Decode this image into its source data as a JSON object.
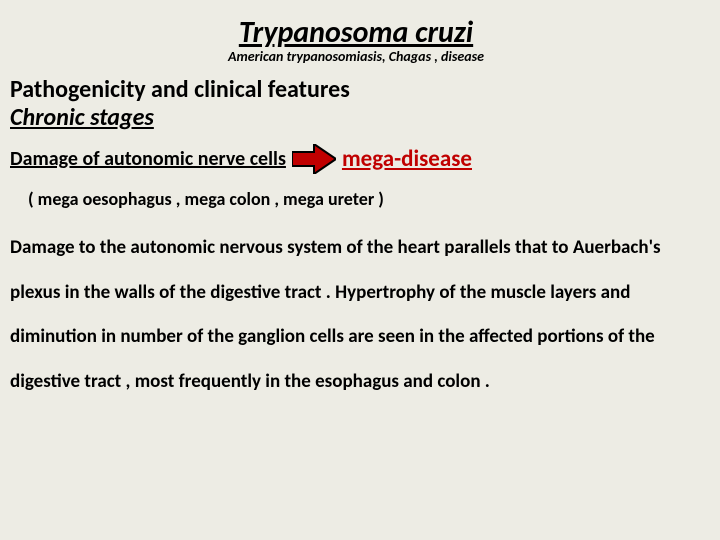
{
  "title": {
    "text": "Trypanosoma cruzi",
    "fontsize": 30,
    "color": "#000000"
  },
  "subtitle": {
    "text": "American trypanosomiasis, Chagas , disease",
    "fontsize": 14,
    "color": "#000000"
  },
  "section_heading": {
    "text": " Pathogenicity and clinical features",
    "fontsize": 24,
    "color": "#000000"
  },
  "subheading": {
    "text": "Chronic stages",
    "fontsize": 24,
    "color": "#000000"
  },
  "damage_line": {
    "left_text": "Damage of autonomic nerve cells ",
    "left_fontsize": 20,
    "left_color": "#000000",
    "right_text": " mega-disease",
    "right_fontsize": 23,
    "right_color": "#c00000",
    "arrow": {
      "fill": "#c00000",
      "stroke": "#000000",
      "stroke_width": 2,
      "width": 44,
      "height": 30
    }
  },
  "parens": {
    "text": "( mega oesophagus , mega colon , mega ureter )",
    "fontsize": 18,
    "color": "#000000"
  },
  "body": {
    "text": "Damage to the autonomic nervous system of the heart parallels that to Auerbach's plexus in the walls of the digestive tract . Hypertrophy of the muscle layers and diminution in number of the ganglion cells are seen in the affected portions of the digestive tract , most frequently in the esophagus and colon .",
    "fontsize": 19,
    "color": "#000000"
  },
  "background_color": "#edece4"
}
